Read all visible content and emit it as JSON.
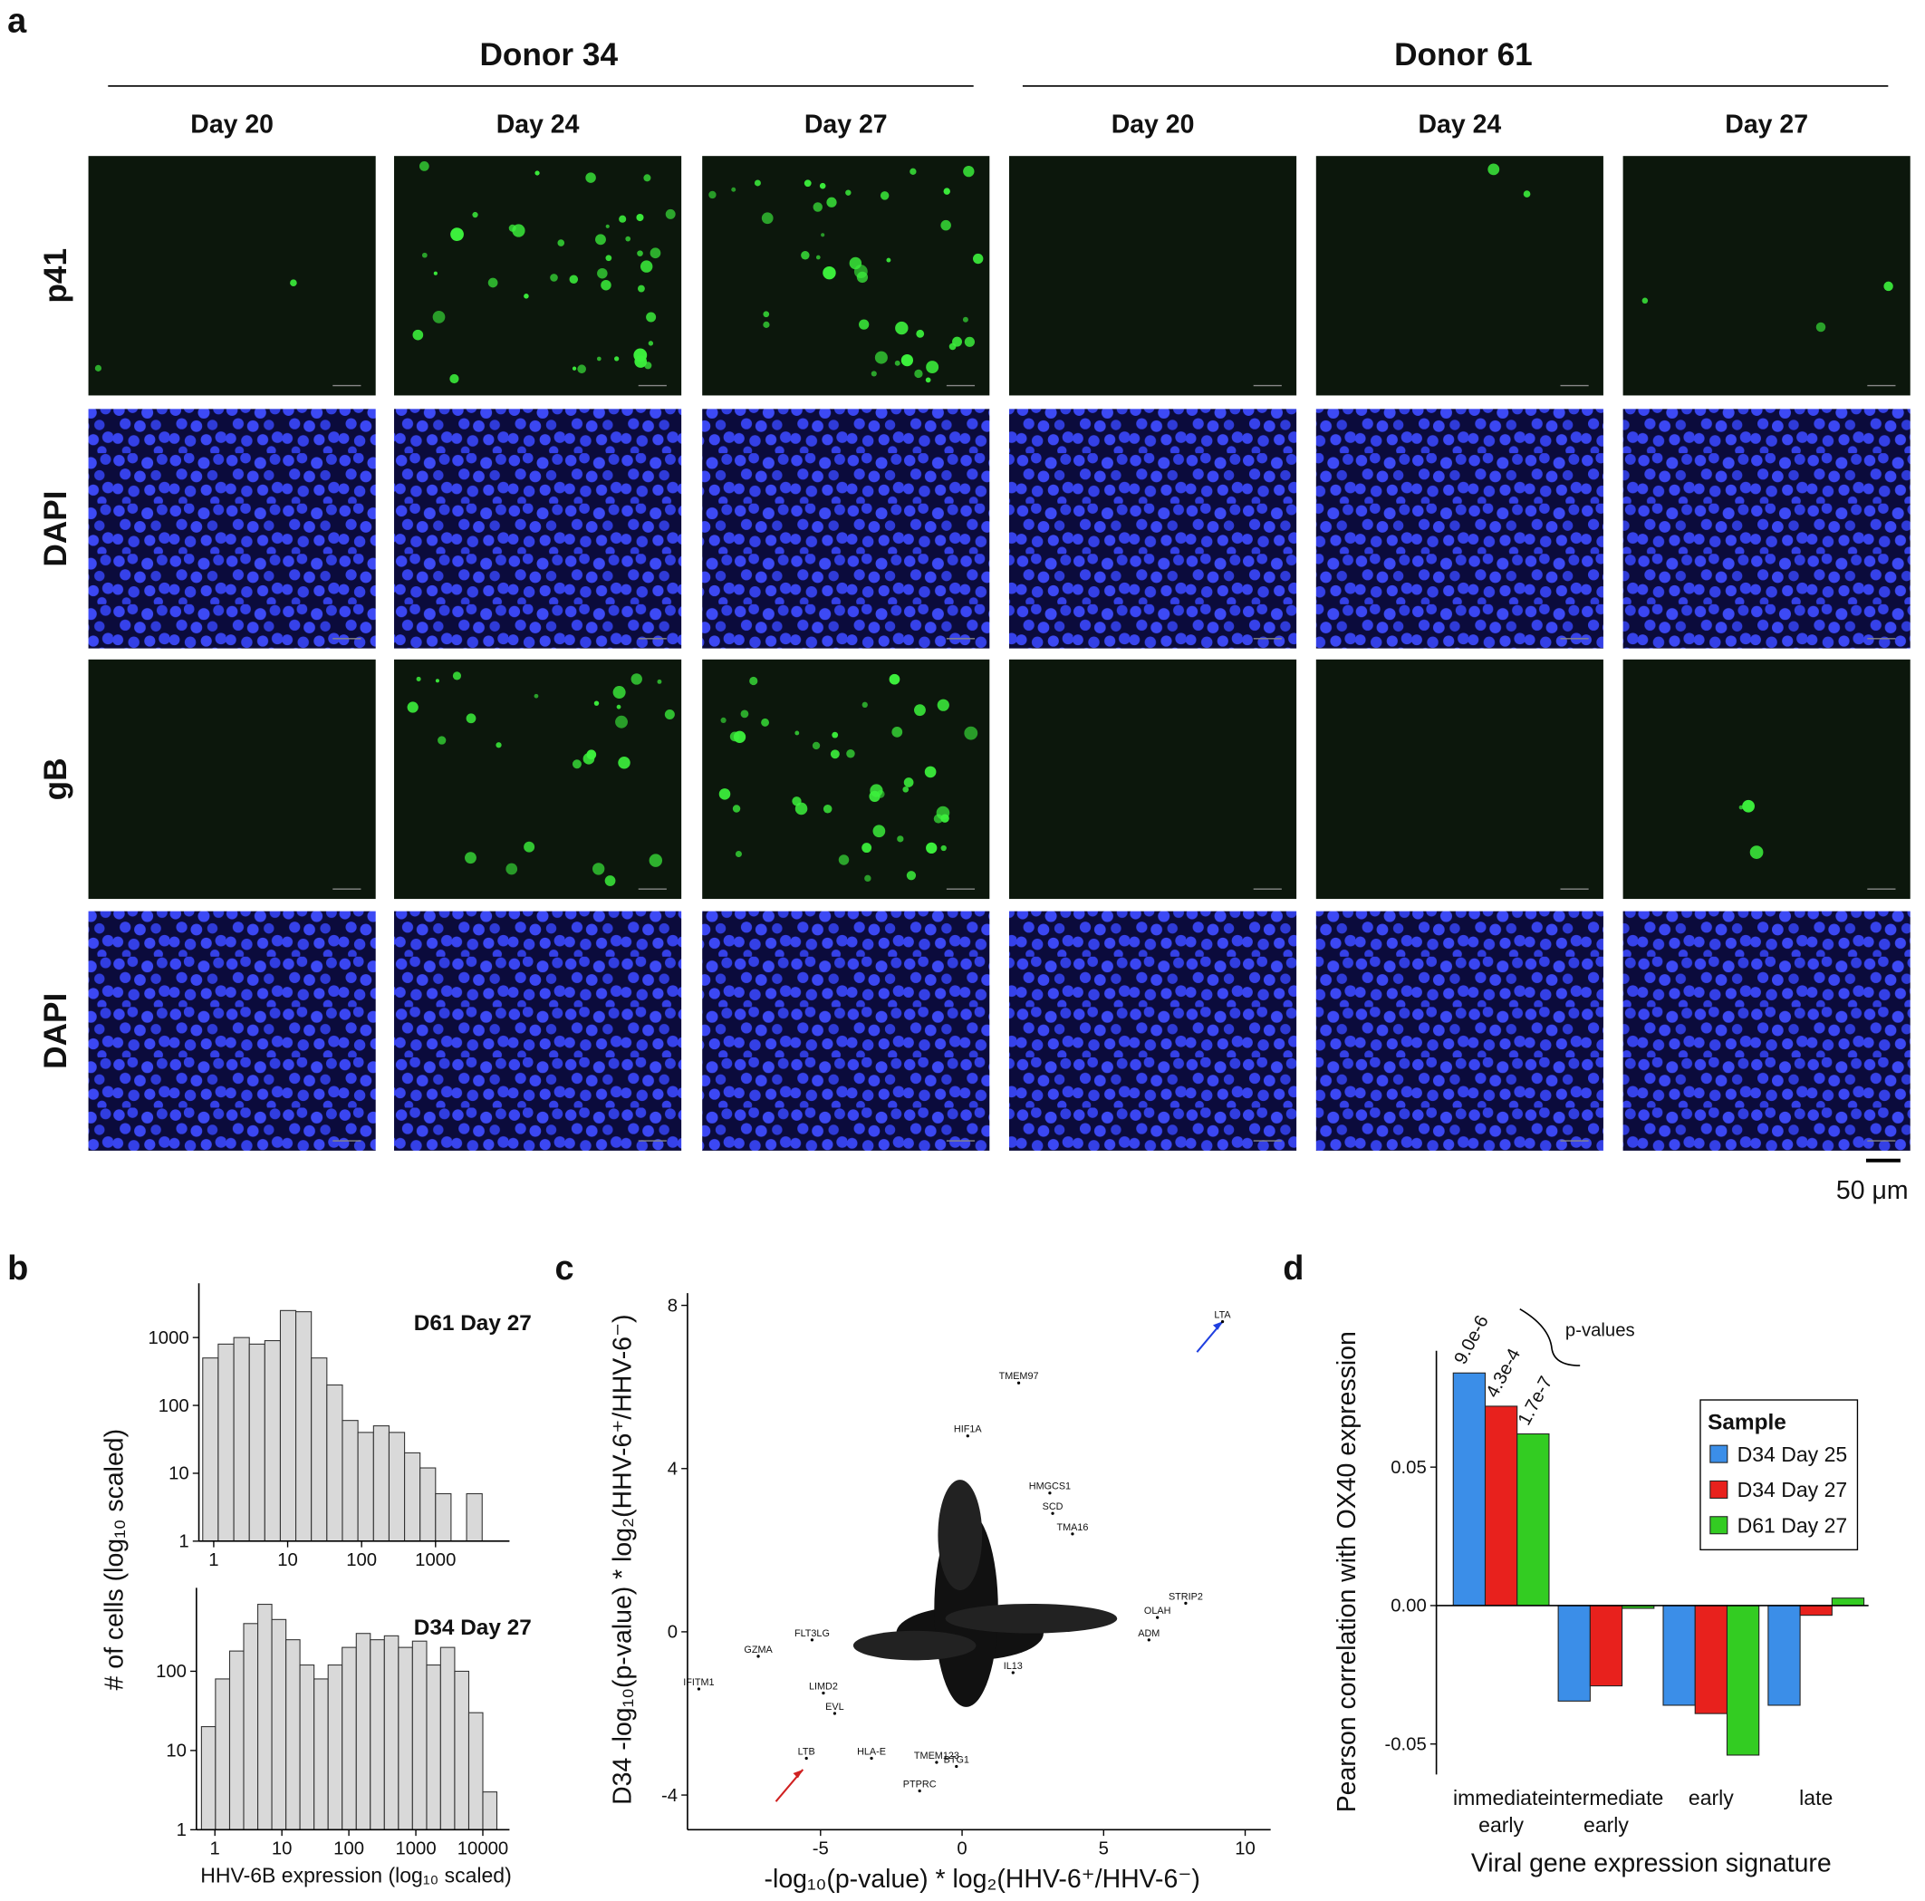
{
  "panel_a": {
    "letter": "a",
    "donors": [
      {
        "name": "Donor 34",
        "days": [
          "Day 20",
          "Day 24",
          "Day 27"
        ]
      },
      {
        "name": "Donor 61",
        "days": [
          "Day 20",
          "Day 24",
          "Day 27"
        ]
      }
    ],
    "rows": [
      "p41",
      "DAPI",
      "gB",
      "DAPI"
    ],
    "scale_bar": "50 μm"
  },
  "chart_data": [
    {
      "type": "histogram",
      "panel_label": "b",
      "title": "D61 Day 27",
      "y_label": "# of cells (log₁₀ scaled)",
      "bins": [
        0.71,
        1.15,
        1.87,
        3.03,
        4.91,
        7.96,
        12.9,
        20.9,
        33.9,
        55,
        89.2,
        145,
        235,
        381,
        617,
        1000,
        1620,
        2630,
        4270
      ],
      "values": [
        500,
        800,
        1000,
        800,
        900,
        2500,
        2400,
        500,
        200,
        60,
        40,
        50,
        40,
        20,
        12,
        5,
        0,
        5
      ],
      "color": "#d9d9d9",
      "xscale": "log",
      "yscale": "log",
      "xlim": [
        0.63,
        10000
      ],
      "ylim": [
        1,
        6300
      ],
      "xticks": [
        1,
        10,
        100,
        1000
      ],
      "yticks": [
        1,
        10,
        100,
        1000
      ]
    },
    {
      "type": "histogram",
      "title": "D34 Day 27",
      "x_label": "HHV-6B expression (log₁₀ scaled)",
      "bins": [
        0.63,
        1.02,
        1.66,
        2.69,
        4.37,
        7.08,
        11.5,
        18.6,
        30.2,
        49,
        79.4,
        129,
        209,
        339,
        550,
        891,
        1450,
        2340,
        3800,
        6170,
        10000,
        16200
      ],
      "values": [
        20,
        80,
        180,
        400,
        700,
        450,
        250,
        120,
        80,
        120,
        200,
        300,
        250,
        280,
        200,
        240,
        120,
        200,
        100,
        30,
        3
      ],
      "color": "#d9d9d9",
      "xscale": "log",
      "yscale": "log",
      "xlim": [
        0.53,
        25000
      ],
      "ylim": [
        1,
        1130
      ],
      "xticks": [
        1,
        10,
        100,
        1000,
        10000
      ],
      "yticks": [
        1,
        10,
        100
      ]
    },
    {
      "type": "scatter",
      "panel_label": "c",
      "x_label": "-log₁₀(p-value) * log₂(HHV-6⁺/HHV-6⁻)",
      "y_label": "D34 -log₁₀(p-value) * log₂(HHV-6⁺/HHV-6⁻)",
      "labels": [
        "LTA",
        "TMEM97",
        "HIF1A",
        "HMGCS1",
        "SCD",
        "TMA16",
        "STRIP2",
        "OLAH",
        "ADM",
        "IL13",
        "FLT3LG",
        "GZMA",
        "IFITM1",
        "LIMD2",
        "EVL",
        "LTB",
        "HLA-E",
        "PTPRC",
        "TMEM123",
        "BTG1"
      ],
      "x": [
        9.2,
        2.0,
        0.2,
        3.1,
        3.2,
        3.9,
        7.9,
        6.9,
        6.6,
        1.8,
        -5.3,
        -7.2,
        -9.3,
        -4.9,
        -4.5,
        -5.5,
        -3.2,
        -1.5,
        -0.9,
        -0.2
      ],
      "values": [
        7.6,
        6.1,
        4.8,
        3.4,
        2.9,
        2.4,
        0.7,
        0.35,
        -0.2,
        -1.0,
        -0.2,
        -0.6,
        -1.4,
        -1.5,
        -2.0,
        -3.1,
        -3.1,
        -3.9,
        -3.2,
        -3.3
      ],
      "color": "#000000",
      "xlim": [
        -9.7,
        10.9
      ],
      "ylim": [
        -4.85,
        8.3
      ],
      "xticks": [
        -5,
        0,
        5,
        10
      ],
      "yticks": [
        -4,
        0,
        4,
        8
      ]
    },
    {
      "type": "bar",
      "panel_label": "d",
      "x_label": "Viral gene expression signature",
      "y_label": "Pearson correlation with OX40 expression",
      "categories": [
        "immediate early",
        "intermediate early",
        "early",
        "late"
      ],
      "series": [
        {
          "name": "D34 Day 25",
          "color": "#3b8ee8",
          "values": [
            0.084,
            -0.0345,
            -0.036,
            -0.036
          ]
        },
        {
          "name": "D34 Day 27",
          "color": "#e8211d",
          "values": [
            0.072,
            -0.029,
            -0.039,
            -0.0035
          ]
        },
        {
          "name": "D61 Day 27",
          "color": "#33cc22",
          "values": [
            0.062,
            -0.001,
            -0.054,
            0.0027
          ]
        }
      ],
      "legend_title": "Sample",
      "legend": "upper right",
      "p_value_title": "p-values",
      "p_value_labels": [
        "9.0e-6",
        "4.3e-4",
        "1.7e-7"
      ],
      "ylim": [
        -0.061,
        0.092
      ],
      "yticks": [
        -0.05,
        {
          "value": 0,
          "label": "0.00"
        },
        0.05
      ]
    }
  ]
}
